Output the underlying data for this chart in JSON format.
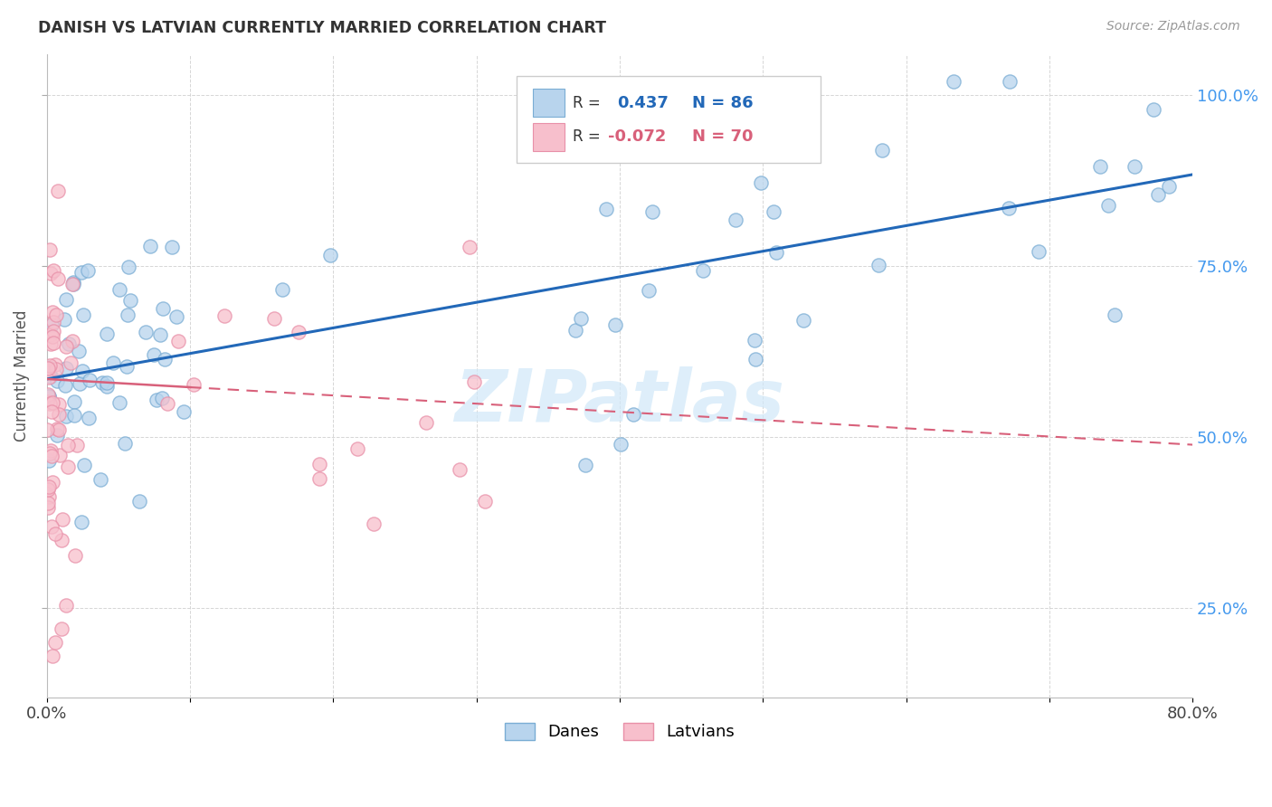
{
  "title": "DANISH VS LATVIAN CURRENTLY MARRIED CORRELATION CHART",
  "source": "Source: ZipAtlas.com",
  "ylabel": "Currently Married",
  "xlim": [
    0.0,
    0.8
  ],
  "ylim": [
    0.12,
    1.06
  ],
  "legend_r_danes": "0.437",
  "legend_n_danes": "86",
  "legend_r_latvians": "-0.072",
  "legend_n_latvians": "70",
  "danes_fill_color": "#b8d4ed",
  "danes_edge_color": "#7aadd4",
  "latvians_fill_color": "#f7bfcc",
  "latvians_edge_color": "#e890a8",
  "danes_line_color": "#2268b8",
  "latvians_line_color": "#d8607a",
  "background_color": "#ffffff",
  "grid_color": "#cccccc",
  "watermark_color": "#d0e8f8",
  "right_axis_color": "#4499ee",
  "title_color": "#333333",
  "source_color": "#999999"
}
